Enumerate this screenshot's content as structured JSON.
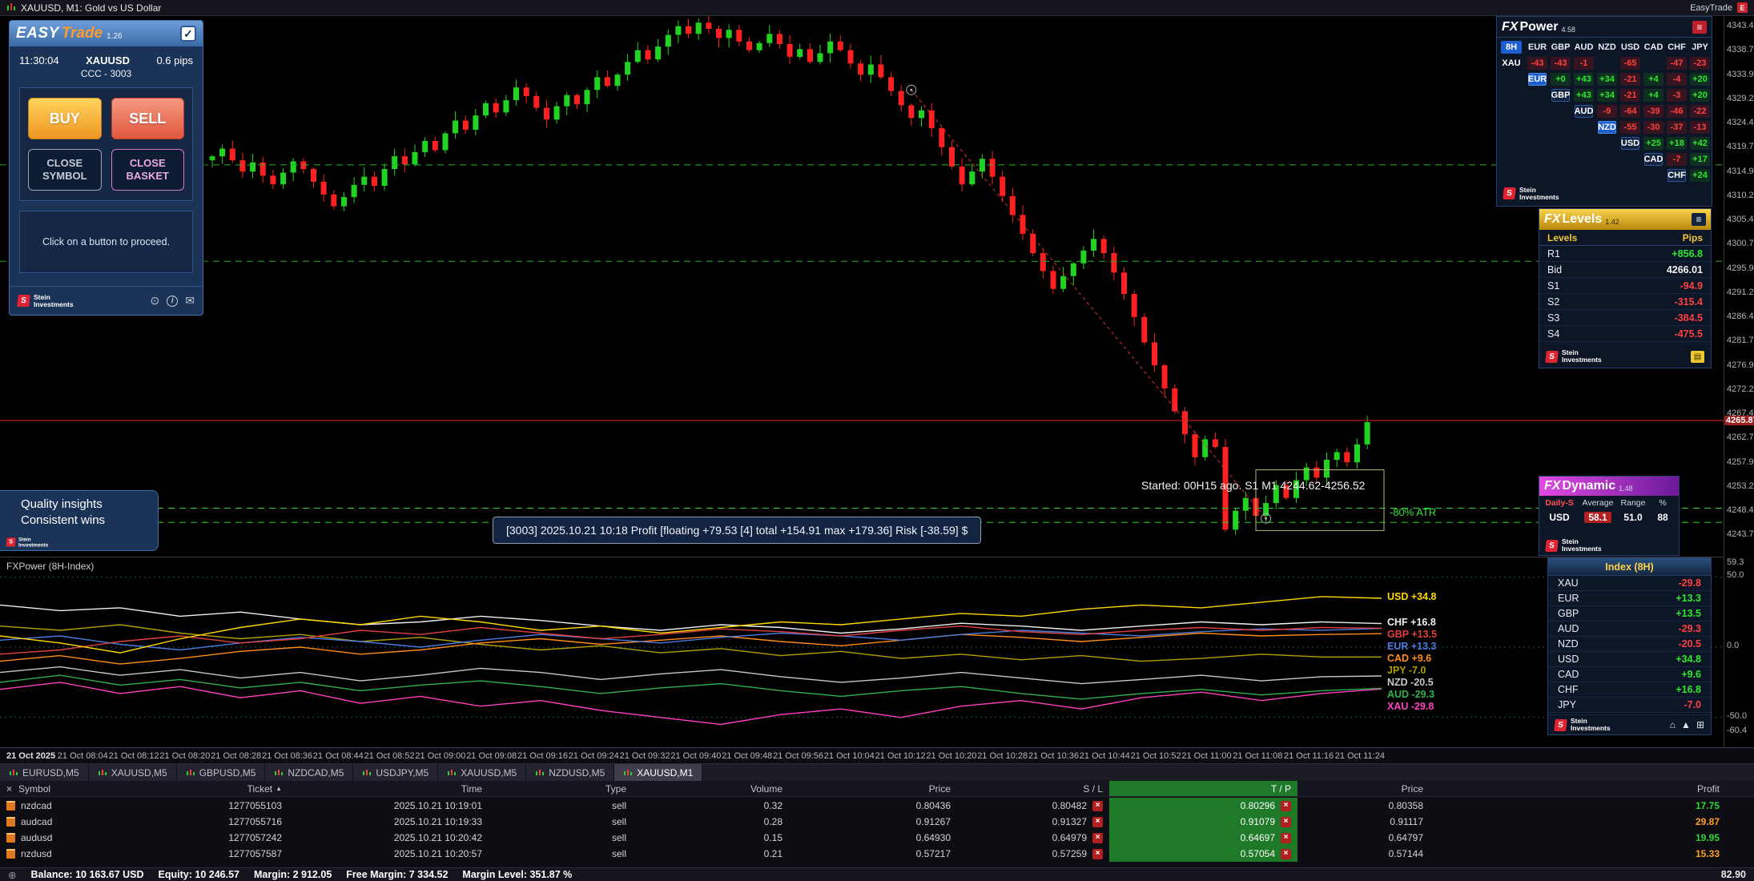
{
  "window": {
    "title": "XAUUSD, M1:  Gold vs US Dollar",
    "brand": "EasyTrade"
  },
  "brand": {
    "name": "S",
    "line1": "Stein",
    "line2": "Investments"
  },
  "easytrade": {
    "brand_easy": "EASY",
    "brand_trade": "Trade",
    "version": "1.26",
    "time": "11:30:04",
    "symbol": "XAUUSD",
    "spread": "0.6 pips",
    "subtitle": "CCC - 3003",
    "buy_label": "BUY",
    "sell_label": "SELL",
    "close_symbol_label": "CLOSE SYMBOL",
    "close_basket_label": "CLOSE BASKET",
    "hint": "Click on a button to proceed.",
    "checkbox_glyph": "✓"
  },
  "fxpower": {
    "title_fx": "FX",
    "title_rest": "Power",
    "version": "4.58",
    "period": "8H",
    "columns": [
      "EUR",
      "GBP",
      "AUD",
      "NZD",
      "USD",
      "CAD",
      "CHF",
      "JPY"
    ],
    "rows": [
      {
        "label": "XAU",
        "highlight": false,
        "values": [
          "-43",
          "-43",
          "-1",
          "",
          "-65",
          "",
          "-47",
          "-23"
        ]
      },
      {
        "label": "EUR",
        "highlight": true,
        "values": [
          "+0",
          "+43",
          "+34",
          "-21",
          "+4",
          "-4",
          "+20"
        ]
      },
      {
        "label": "GBP",
        "highlight": false,
        "values": [
          "+43",
          "+34",
          "-21",
          "+4",
          "-3",
          "+20"
        ]
      },
      {
        "label": "AUD",
        "highlight": false,
        "values": [
          "-9",
          "-64",
          "-39",
          "-46",
          "-22"
        ]
      },
      {
        "label": "NZD",
        "highlight": true,
        "values": [
          "-55",
          "-30",
          "-37",
          "-13"
        ]
      },
      {
        "label": "USD",
        "highlight": false,
        "values": [
          "+25",
          "+18",
          "+42"
        ]
      },
      {
        "label": "CAD",
        "highlight": false,
        "values": [
          "-7",
          "+17"
        ]
      },
      {
        "label": "CHF",
        "highlight": false,
        "values": [
          "+24"
        ]
      }
    ]
  },
  "fxlevels": {
    "title_fx": "FX",
    "title_rest": "Levels",
    "version": "1.42",
    "col_levels": "Levels",
    "col_pips": "Pips",
    "rows": [
      {
        "label": "R1",
        "value": "+856.8",
        "tone": "pos"
      },
      {
        "label": "Bid",
        "value": "4266.01",
        "tone": "neutral"
      },
      {
        "label": "S1",
        "value": "-94.9",
        "tone": "neg"
      },
      {
        "label": "S2",
        "value": "-315.4",
        "tone": "neg"
      },
      {
        "label": "S3",
        "value": "-384.5",
        "tone": "neg"
      },
      {
        "label": "S4",
        "value": "-475.5",
        "tone": "neg"
      }
    ]
  },
  "fxdynamic": {
    "title_fx": "FX",
    "title_rest": "Dynamic",
    "version": "1.48",
    "columns": [
      "Daily-S",
      "Average",
      "Range",
      "%"
    ],
    "row": {
      "label": "USD",
      "average": "58.1",
      "range": "51.0",
      "percent": "88"
    }
  },
  "index_panel": {
    "title": "Index (8H)",
    "rows": [
      {
        "label": "XAU",
        "value": "-29.8",
        "tone": "neg"
      },
      {
        "label": "EUR",
        "value": "+13.3",
        "tone": "pos"
      },
      {
        "label": "GBP",
        "value": "+13.5",
        "tone": "pos"
      },
      {
        "label": "AUD",
        "value": "-29.3",
        "tone": "neg"
      },
      {
        "label": "NZD",
        "value": "-20.5",
        "tone": "neg"
      },
      {
        "label": "USD",
        "value": "+34.8",
        "tone": "pos"
      },
      {
        "label": "CAD",
        "value": "+9.6",
        "tone": "pos"
      },
      {
        "label": "CHF",
        "value": "+16.8",
        "tone": "pos"
      },
      {
        "label": "JPY",
        "value": "-7.0",
        "tone": "neg"
      }
    ]
  },
  "overlays": {
    "tooltip": "[3003] 2025.10.21 10:18 Profit [floating +79.53 [4] total +154.91 max +179.36] Risk [-38.59] $",
    "started": "Started: 00H15 ago. S1 M1 4244.62-4256.52",
    "atr": "-80% ATR",
    "quality1": "Quality insights",
    "quality2": "Consistent wins",
    "current_price": "4265.87"
  },
  "chart_data": [
    {
      "type": "candlestick",
      "symbol": "XAUUSD",
      "timeframe": "M1",
      "ylim": [
        4239.5,
        4345.5
      ],
      "up_color": "#21d421",
      "down_color": "#ff2121",
      "closes": [
        4318.0,
        4319.5,
        4317.2,
        4315.0,
        4316.8,
        4314.2,
        4312.5,
        4314.8,
        4317.0,
        4315.5,
        4313.0,
        4310.5,
        4308.2,
        4310.0,
        4312.4,
        4314.0,
        4312.2,
        4315.5,
        4318.0,
        4316.4,
        4318.8,
        4321.0,
        4319.2,
        4322.5,
        4325.0,
        4323.2,
        4326.0,
        4328.4,
        4326.6,
        4329.0,
        4331.5,
        4329.8,
        4327.5,
        4325.2,
        4327.8,
        4330.0,
        4328.2,
        4331.0,
        4333.5,
        4331.8,
        4334.0,
        4336.5,
        4338.8,
        4337.0,
        4339.5,
        4341.8,
        4343.5,
        4342.0,
        4344.2,
        4343.0,
        4341.2,
        4342.8,
        4340.5,
        4338.8,
        4340.2,
        4342.0,
        4340.0,
        4337.5,
        4339.0,
        4336.5,
        4338.2,
        4340.5,
        4338.8,
        4336.2,
        4334.0,
        4336.0,
        4333.5,
        4330.8,
        4328.0,
        4325.5,
        4327.0,
        4323.5,
        4319.8,
        4316.0,
        4312.5,
        4315.0,
        4317.5,
        4314.0,
        4310.2,
        4306.5,
        4302.8,
        4299.0,
        4295.5,
        4292.0,
        4294.5,
        4297.0,
        4299.5,
        4301.8,
        4299.0,
        4295.2,
        4291.0,
        4286.5,
        4281.5,
        4277.0,
        4272.5,
        4268.0,
        4263.5,
        4259.0,
        4262.5,
        4261.0,
        4244.8,
        4248.5,
        4251.0,
        4247.5,
        4250.0,
        4253.5,
        4251.0,
        4254.5,
        4257.0,
        4255.0,
        4258.5,
        4260.0,
        4258.0,
        4261.5,
        4265.87
      ],
      "levels": [
        {
          "price": 4316.3,
          "color": "#1fb41f",
          "dash": "8 6"
        },
        {
          "price": 4297.4,
          "color": "#1fb41f",
          "dash": "8 6"
        },
        {
          "price": 4249.0,
          "color": "#24d424",
          "dash": "8 6"
        },
        {
          "price": 4246.2,
          "color": "#24d424",
          "dash": "8 6"
        },
        {
          "price": 4266.2,
          "color": "#e02020",
          "dash": ""
        }
      ],
      "trend": {
        "i1": 69,
        "p1": 4331.0,
        "i2": 104,
        "p2": 4247.0
      },
      "zone": {
        "from_candle": 103,
        "x_to": 1728,
        "top": 4256.52,
        "bottom": 4244.62
      },
      "price_axis": {
        "max": 4343.45,
        "step": 4.75,
        "count": 22
      }
    },
    {
      "type": "line",
      "title": "FXPower (8H-Index)",
      "ylim": [
        -60.4,
        59.3
      ],
      "gridlines": [
        50,
        0,
        -50
      ],
      "scale_ticks": [
        "59.3",
        "50.0",
        "0.0",
        "-50.0",
        "-60.4"
      ],
      "scale_values": [
        59.3,
        50.0,
        0.0,
        -50.0,
        -60.4
      ],
      "series": [
        {
          "name": "XAU",
          "label": "XAU -29.8",
          "color": "#ff40c0",
          "values": [
            -30,
            -25,
            -33,
            -28,
            -36,
            -31,
            -40,
            -35,
            -42,
            -38,
            -45,
            -50,
            -55,
            -48,
            -44,
            -50,
            -42,
            -38,
            -44,
            -36,
            -32,
            -38,
            -33,
            -29.8
          ]
        },
        {
          "name": "AUD",
          "label": "AUD -29.3",
          "color": "#30b050",
          "values": [
            -25,
            -20,
            -27,
            -23,
            -29,
            -25,
            -31,
            -27,
            -24,
            -28,
            -33,
            -29,
            -26,
            -31,
            -35,
            -31,
            -28,
            -33,
            -37,
            -33,
            -30,
            -34,
            -31,
            -29.3
          ]
        },
        {
          "name": "NZD",
          "label": "NZD -20.5",
          "color": "#c8c8c8",
          "values": [
            -18,
            -14,
            -20,
            -16,
            -22,
            -18,
            -24,
            -20,
            -15,
            -18,
            -23,
            -19,
            -16,
            -21,
            -25,
            -22,
            -18,
            -22,
            -26,
            -23,
            -20,
            -24,
            -21,
            -20.5
          ]
        },
        {
          "name": "JPY",
          "label": "JPY  -7.0",
          "color": "#b0a000",
          "values": [
            15,
            12,
            16,
            10,
            6,
            9,
            4,
            7,
            2,
            -2,
            1,
            -4,
            -1,
            -6,
            -3,
            -8,
            -5,
            -9,
            -6,
            -10,
            -8,
            -5,
            -7,
            -7.0
          ]
        },
        {
          "name": "CAD",
          "label": "CAD  +9.6",
          "color": "#ff8c1a",
          "values": [
            -10,
            -6,
            -12,
            -8,
            -3,
            0,
            -5,
            -2,
            3,
            6,
            2,
            5,
            8,
            4,
            1,
            5,
            9,
            7,
            4,
            7,
            10,
            8,
            9,
            9.6
          ]
        },
        {
          "name": "EUR",
          "label": "EUR +13.3",
          "color": "#4a7adf",
          "values": [
            5,
            8,
            2,
            -2,
            3,
            7,
            4,
            0,
            5,
            9,
            6,
            3,
            7,
            10,
            8,
            5,
            9,
            12,
            10,
            8,
            11,
            13,
            12,
            13.3
          ]
        },
        {
          "name": "GBP",
          "label": "GBP +13.5",
          "color": "#e04040",
          "values": [
            -5,
            -2,
            4,
            8,
            3,
            6,
            12,
            9,
            14,
            10,
            6,
            9,
            13,
            11,
            8,
            12,
            15,
            11,
            9,
            12,
            14,
            12,
            14,
            13.5
          ]
        },
        {
          "name": "CHF",
          "label": "CHF +16.8",
          "color": "#f0f0f0",
          "values": [
            30,
            26,
            28,
            22,
            25,
            20,
            16,
            18,
            22,
            19,
            15,
            12,
            16,
            14,
            10,
            13,
            17,
            15,
            12,
            15,
            18,
            16,
            18,
            16.8
          ]
        },
        {
          "name": "USD",
          "label": "USD +34.8",
          "color": "#ffd700",
          "values": [
            8,
            3,
            -4,
            6,
            14,
            20,
            16,
            22,
            18,
            12,
            15,
            10,
            14,
            18,
            16,
            20,
            24,
            22,
            27,
            30,
            28,
            32,
            36,
            34.8
          ]
        }
      ]
    }
  ],
  "date_axis": [
    "21 Oct 2025",
    "21 Oct 08:04",
    "21 Oct 08:12",
    "21 Oct 08:20",
    "21 Oct 08:28",
    "21 Oct 08:36",
    "21 Oct 08:44",
    "21 Oct 08:52",
    "21 Oct 09:00",
    "21 Oct 09:08",
    "21 Oct 09:16",
    "21 Oct 09:24",
    "21 Oct 09:32",
    "21 Oct 09:40",
    "21 Oct 09:48",
    "21 Oct 09:56",
    "21 Oct 10:04",
    "21 Oct 10:12",
    "21 Oct 10:20",
    "21 Oct 10:28",
    "21 Oct 10:36",
    "21 Oct 10:44",
    "21 Oct 10:52",
    "21 Oct 11:00",
    "21 Oct 11:08",
    "21 Oct 11:16",
    "21 Oct 11:24"
  ],
  "tabs": [
    {
      "label": "EURUSD,M5",
      "active": false
    },
    {
      "label": "XAUUSD,M5",
      "active": false
    },
    {
      "label": "GBPUSD,M5",
      "active": false
    },
    {
      "label": "NZDCAD,M5",
      "active": false
    },
    {
      "label": "USDJPY,M5",
      "active": false
    },
    {
      "label": "XAUUSD,M5",
      "active": false
    },
    {
      "label": "NZDUSD,M5",
      "active": false
    },
    {
      "label": "XAUUSD,M1",
      "active": true
    }
  ],
  "table": {
    "headers": [
      "Symbol",
      "Ticket",
      "Time",
      "Type",
      "Volume",
      "Price",
      "S / L",
      "T / P",
      "Price",
      "Profit"
    ],
    "sort_icon": "▲",
    "close_icon": "×",
    "remove_icon": "×",
    "rows": [
      {
        "symbol": "nzdcad",
        "ticket": "1277055103",
        "time": "2025.10.21 10:19:01",
        "type": "sell",
        "volume": "0.32",
        "price": "0.80436",
        "sl": "0.80482",
        "tp": "0.80296",
        "price2": "0.80358",
        "profit": "17.75",
        "profit_tone": "pos"
      },
      {
        "symbol": "audcad",
        "ticket": "1277055716",
        "time": "2025.10.21 10:19:33",
        "type": "sell",
        "volume": "0.28",
        "price": "0.91267",
        "sl": "0.91327",
        "tp": "0.91079",
        "price2": "0.91117",
        "profit": "29.87",
        "profit_tone": "warn"
      },
      {
        "symbol": "audusd",
        "ticket": "1277057242",
        "time": "2025.10.21 10:20:42",
        "type": "sell",
        "volume": "0.15",
        "price": "0.64930",
        "sl": "0.64979",
        "tp": "0.64697",
        "price2": "0.64797",
        "profit": "19.95",
        "profit_tone": "pos"
      },
      {
        "symbol": "nzdusd",
        "ticket": "1277057587",
        "time": "2025.10.21 10:20:57",
        "type": "sell",
        "volume": "0.21",
        "price": "0.57217",
        "sl": "0.57259",
        "tp": "0.57054",
        "price2": "0.57144",
        "profit": "15.33",
        "profit_tone": "warn"
      }
    ]
  },
  "status": {
    "items": [
      {
        "label": "Balance:",
        "value": "10 163.67 USD"
      },
      {
        "label": "Equity:",
        "value": "10 246.57"
      },
      {
        "label": "Margin:",
        "value": "2 912.05"
      },
      {
        "label": "Free Margin:",
        "value": "7 334.52"
      },
      {
        "label": "Margin Level:",
        "value": "351.87 %"
      }
    ],
    "total_profit": "82.90"
  }
}
